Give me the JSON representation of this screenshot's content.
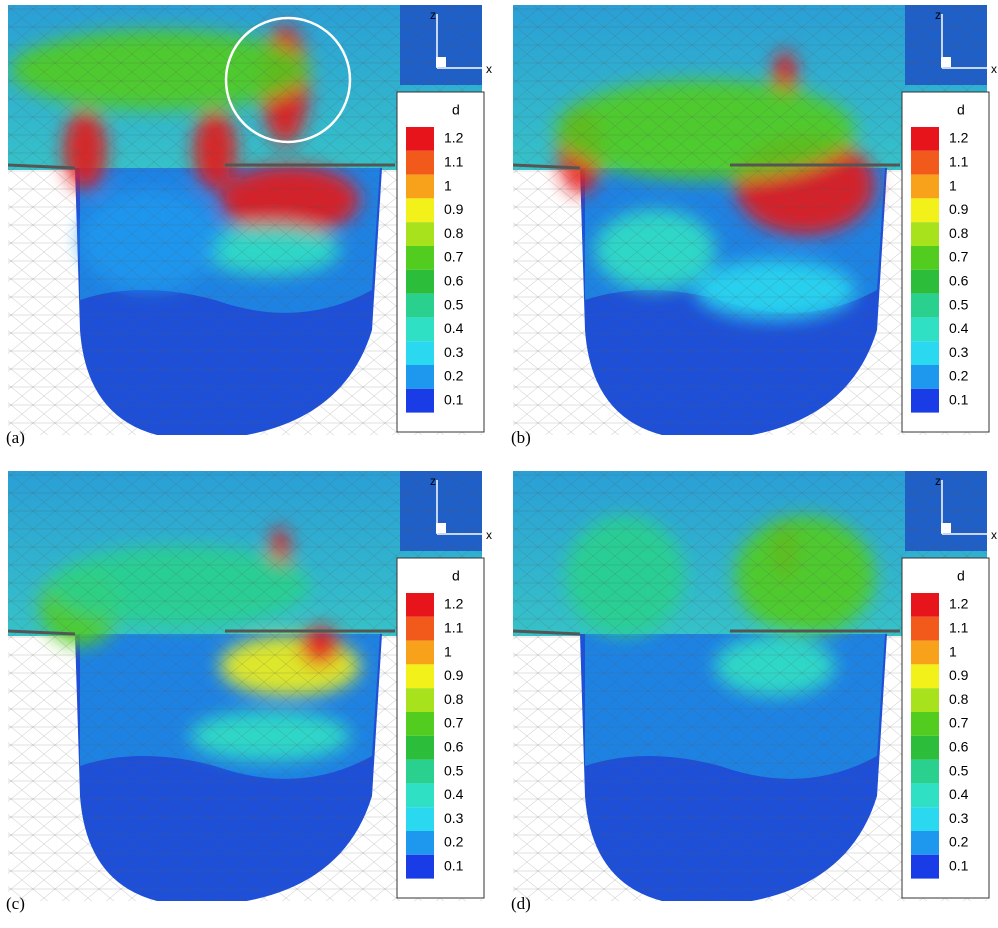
{
  "axis_labels": {
    "z": "z",
    "x": "x"
  },
  "legend": {
    "title": "d",
    "levels": [
      {
        "label": "1.2",
        "color": "#e8141b"
      },
      {
        "label": "1.1",
        "color": "#f25a1c"
      },
      {
        "label": "1",
        "color": "#f8a21c"
      },
      {
        "label": "0.9",
        "color": "#f2f21a"
      },
      {
        "label": "0.8",
        "color": "#a8e21c"
      },
      {
        "label": "0.7",
        "color": "#52cc1e"
      },
      {
        "label": "0.6",
        "color": "#2cbd3a"
      },
      {
        "label": "0.5",
        "color": "#2ad08e"
      },
      {
        "label": "0.4",
        "color": "#30e0c4"
      },
      {
        "label": "0.3",
        "color": "#2ad8f0"
      },
      {
        "label": "0.2",
        "color": "#1e98ee"
      },
      {
        "label": "0.1",
        "color": "#1a3ce6"
      }
    ]
  },
  "panels": [
    {
      "label": "(a)"
    },
    {
      "label": "(b)"
    },
    {
      "label": "(c)"
    },
    {
      "label": "(d)"
    }
  ]
}
